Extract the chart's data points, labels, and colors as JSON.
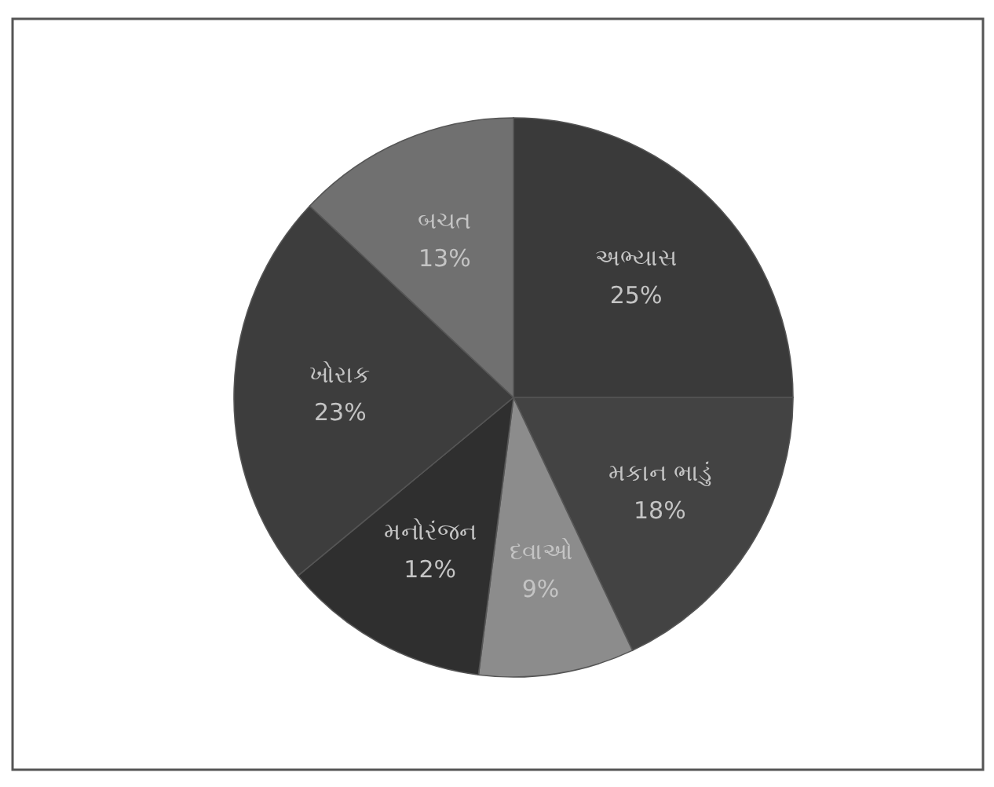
{
  "chart_data": {
    "type": "pie",
    "categories": [
      "અભ્યાસ",
      "મકાન ભાડું",
      "દવાઓ",
      "મનોરંજન",
      "ખોરાક",
      "બચત"
    ],
    "values": [
      25,
      18,
      9,
      12,
      23,
      13
    ],
    "colors": [
      "#3a3a3a",
      "#434343",
      "#8c8c8c",
      "#2f2f2f",
      "#3d3d3d",
      "#707070"
    ],
    "value_labels": [
      "25%",
      "18%",
      "9%",
      "12%",
      "23%",
      "13%"
    ]
  }
}
